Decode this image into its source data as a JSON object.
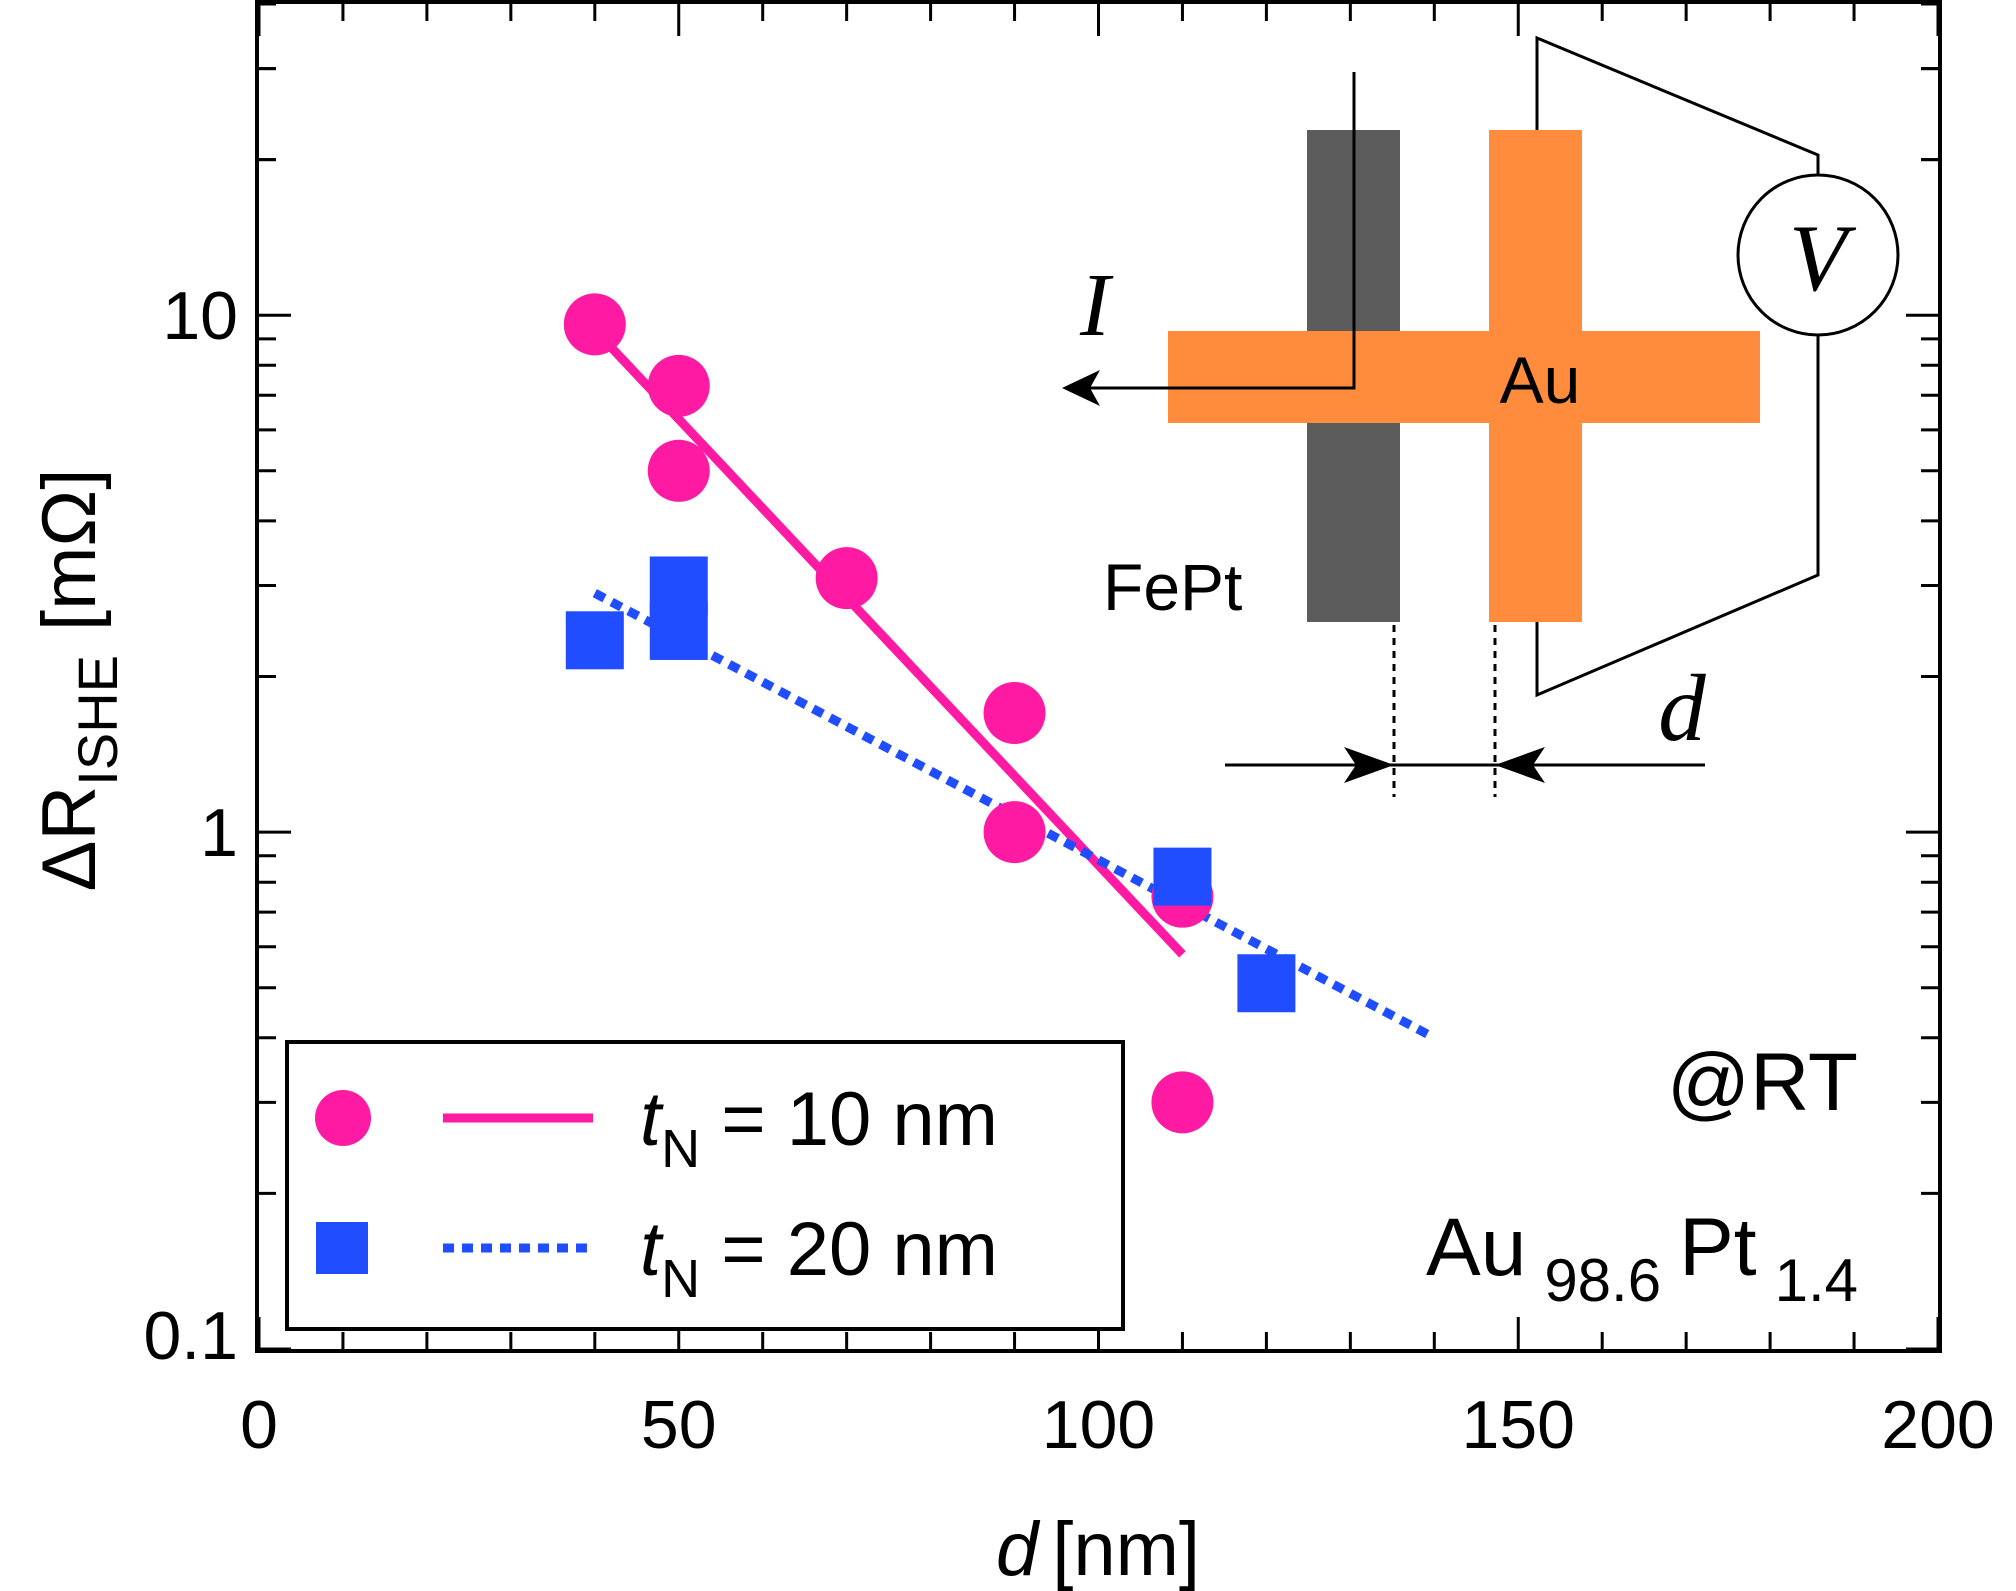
{
  "chart_data": {
    "type": "scatter",
    "xlabel": {
      "var": "d",
      "unit": "[nm]"
    },
    "ylabel": {
      "prefix": "ΔR",
      "sub": "ISHE",
      "unit": "[mΩ]"
    },
    "xlim": [
      0,
      200
    ],
    "ylim": [
      0.1,
      40
    ],
    "yscale": "log",
    "x_ticks": [
      "0",
      "50",
      "100",
      "150",
      "200"
    ],
    "y_ticks": [
      "0.1",
      "1",
      "10"
    ],
    "grid": false,
    "legend_position": "bottom-left",
    "series": [
      {
        "name": "t_N = 10 nm",
        "legend": {
          "var": "t",
          "sub": "N",
          "rest": " = 10 nm"
        },
        "marker": "circle",
        "color": "#ff1aa3",
        "points": [
          {
            "x": 40,
            "y": 9.6
          },
          {
            "x": 50,
            "y": 7.3
          },
          {
            "x": 50,
            "y": 5.0
          },
          {
            "x": 70,
            "y": 3.1
          },
          {
            "x": 90,
            "y": 1.7
          },
          {
            "x": 90,
            "y": 1.0
          },
          {
            "x": 110,
            "y": 0.75
          },
          {
            "x": 110,
            "y": 0.3
          }
        ],
        "fit": {
          "style": "solid",
          "from": {
            "x": 41,
            "y": 9.0
          },
          "to": {
            "x": 110,
            "y": 0.58
          }
        }
      },
      {
        "name": "t_N = 20 nm",
        "legend": {
          "var": "t",
          "sub": "N",
          "rest": " = 20 nm"
        },
        "marker": "square",
        "color": "#1f4dff",
        "points": [
          {
            "x": 40,
            "y": 2.35
          },
          {
            "x": 50,
            "y": 3.0
          },
          {
            "x": 50,
            "y": 2.45
          },
          {
            "x": 110,
            "y": 0.82
          },
          {
            "x": 120,
            "y": 0.51
          }
        ],
        "fit": {
          "style": "dotted",
          "from": {
            "x": 40,
            "y": 2.9
          },
          "to": {
            "x": 140,
            "y": 0.4
          }
        }
      }
    ],
    "annotations": {
      "temperature": "@RT",
      "alloy": {
        "el1": "Au",
        "sub1": "98.6",
        "el2": "Pt",
        "sub2": "1.4"
      }
    }
  },
  "inset": {
    "current_label": "I",
    "voltmeter_label": "V",
    "au_label": "Au",
    "fept_label": "FePt",
    "distance_label": "d",
    "colors": {
      "au": "#ff8c3d",
      "fept": "#5c5c5c"
    }
  }
}
